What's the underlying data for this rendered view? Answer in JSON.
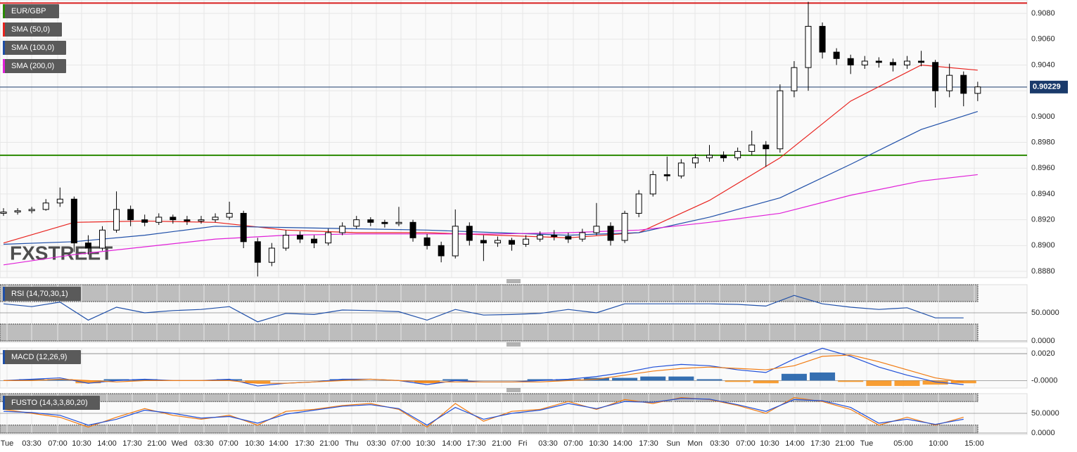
{
  "chart_data": [
    {
      "type": "candlestick",
      "name": "EUR/GBP",
      "color": "#2a8a00",
      "ylim": [
        0.88751,
        0.90904
      ],
      "yticks": [
        {
          "value": 0.888,
          "label": "0.8880"
        },
        {
          "value": 0.89,
          "label": "0.8900"
        },
        {
          "value": 0.892,
          "label": "0.8920"
        },
        {
          "value": 0.894,
          "label": "0.8940"
        },
        {
          "value": 0.896,
          "label": "0.8960"
        },
        {
          "value": 0.898,
          "label": "0.8980"
        },
        {
          "value": 0.9,
          "label": "0.9000"
        },
        {
          "value": 0.902,
          "label": "0.9020"
        },
        {
          "value": 0.904,
          "label": "0.9040"
        },
        {
          "value": 0.906,
          "label": "0.9060"
        },
        {
          "value": 0.908,
          "label": "0.9080"
        }
      ],
      "xticks": [
        "Tue",
        "03:30",
        "07:00",
        "10:30",
        "14:00",
        "17:30",
        "21:00",
        "Wed",
        "03:30",
        "07:00",
        "10:30",
        "14:00",
        "17:30",
        "21:00",
        "Thu",
        "03:30",
        "07:00",
        "10:30",
        "14:00",
        "17:30",
        "21:00",
        "Fri",
        "03:30",
        "07:00",
        "10:30",
        "14:00",
        "17:30",
        "Sun",
        "Mon",
        "03:30",
        "07:00",
        "10:30",
        "14:00",
        "17:30",
        "21:00",
        "Tue",
        "05:00",
        "10:00",
        "15:00"
      ],
      "grid": true,
      "ohlc": [
        [
          0.8925,
          0.8929,
          0.8923,
          0.8926
        ],
        [
          0.8926,
          0.8929,
          0.8924,
          0.8927
        ],
        [
          0.8927,
          0.893,
          0.8925,
          0.8928
        ],
        [
          0.8928,
          0.8936,
          0.8927,
          0.8933
        ],
        [
          0.8933,
          0.8945,
          0.893,
          0.8936
        ],
        [
          0.8936,
          0.8938,
          0.8895,
          0.8902
        ],
        [
          0.8902,
          0.8908,
          0.8893,
          0.8898
        ],
        [
          0.8898,
          0.8915,
          0.8896,
          0.8912
        ],
        [
          0.8912,
          0.8942,
          0.891,
          0.8928
        ],
        [
          0.8928,
          0.8931,
          0.8915,
          0.892
        ],
        [
          0.892,
          0.8924,
          0.8915,
          0.8918
        ],
        [
          0.8918,
          0.8925,
          0.8916,
          0.8922
        ],
        [
          0.8922,
          0.8924,
          0.8917,
          0.892
        ],
        [
          0.892,
          0.8923,
          0.8916,
          0.8919
        ],
        [
          0.8919,
          0.8923,
          0.8917,
          0.892
        ],
        [
          0.892,
          0.8925,
          0.8918,
          0.8922
        ],
        [
          0.8922,
          0.8934,
          0.892,
          0.8925
        ],
        [
          0.8925,
          0.8927,
          0.8898,
          0.8903
        ],
        [
          0.8903,
          0.8906,
          0.8876,
          0.8887
        ],
        [
          0.8887,
          0.8902,
          0.8884,
          0.8898
        ],
        [
          0.8898,
          0.8912,
          0.8896,
          0.8908
        ],
        [
          0.8908,
          0.8911,
          0.8902,
          0.8905
        ],
        [
          0.8905,
          0.8908,
          0.8898,
          0.8902
        ],
        [
          0.8902,
          0.8913,
          0.89,
          0.891
        ],
        [
          0.891,
          0.8918,
          0.8908,
          0.8915
        ],
        [
          0.8915,
          0.8923,
          0.8913,
          0.892
        ],
        [
          0.892,
          0.8922,
          0.8915,
          0.8918
        ],
        [
          0.8918,
          0.892,
          0.8914,
          0.8917
        ],
        [
          0.8917,
          0.893,
          0.8915,
          0.8918
        ],
        [
          0.8918,
          0.892,
          0.8903,
          0.8906
        ],
        [
          0.8906,
          0.8909,
          0.8897,
          0.89
        ],
        [
          0.89,
          0.8903,
          0.8887,
          0.8892
        ],
        [
          0.8892,
          0.8928,
          0.889,
          0.8915
        ],
        [
          0.8915,
          0.8918,
          0.89,
          0.8904
        ],
        [
          0.8904,
          0.8908,
          0.8888,
          0.8902
        ],
        [
          0.8902,
          0.8907,
          0.8899,
          0.8904
        ],
        [
          0.8904,
          0.8906,
          0.8896,
          0.8901
        ],
        [
          0.8901,
          0.8908,
          0.8899,
          0.8905
        ],
        [
          0.8905,
          0.8911,
          0.8903,
          0.8908
        ],
        [
          0.8908,
          0.8912,
          0.8904,
          0.8907
        ],
        [
          0.8907,
          0.891,
          0.8902,
          0.8905
        ],
        [
          0.8905,
          0.8913,
          0.8903,
          0.891
        ],
        [
          0.891,
          0.8933,
          0.8908,
          0.8915
        ],
        [
          0.8915,
          0.8918,
          0.89,
          0.8904
        ],
        [
          0.8904,
          0.8927,
          0.8902,
          0.8925
        ],
        [
          0.8925,
          0.8943,
          0.8922,
          0.894
        ],
        [
          0.894,
          0.8958,
          0.8938,
          0.8955
        ],
        [
          0.8955,
          0.8969,
          0.895,
          0.8954
        ],
        [
          0.8954,
          0.8967,
          0.8952,
          0.8964
        ],
        [
          0.8964,
          0.8971,
          0.896,
          0.8968
        ],
        [
          0.8968,
          0.8978,
          0.8965,
          0.897
        ],
        [
          0.897,
          0.8973,
          0.8965,
          0.8968
        ],
        [
          0.8968,
          0.8976,
          0.8966,
          0.8973
        ],
        [
          0.8973,
          0.8989,
          0.897,
          0.8978
        ],
        [
          0.8978,
          0.8981,
          0.8961,
          0.8975
        ],
        [
          0.8975,
          0.9025,
          0.8972,
          0.902
        ],
        [
          0.902,
          0.9043,
          0.9015,
          0.9038
        ],
        [
          0.9038,
          0.9089,
          0.902,
          0.907
        ],
        [
          0.907,
          0.9073,
          0.9045,
          0.905
        ],
        [
          0.905,
          0.9053,
          0.904,
          0.9045
        ],
        [
          0.9045,
          0.9048,
          0.9033,
          0.904
        ],
        [
          0.904,
          0.9047,
          0.9037,
          0.9043
        ],
        [
          0.9043,
          0.9046,
          0.9038,
          0.9042
        ],
        [
          0.9042,
          0.9045,
          0.9035,
          0.904
        ],
        [
          0.904,
          0.9047,
          0.9037,
          0.9043
        ],
        [
          0.9043,
          0.9051,
          0.9039,
          0.9042
        ],
        [
          0.9042,
          0.9044,
          0.9007,
          0.902
        ],
        [
          0.902,
          0.9041,
          0.9015,
          0.9032
        ],
        [
          0.9032,
          0.9035,
          0.9008,
          0.9018
        ],
        [
          0.9018,
          0.9027,
          0.9012,
          0.9023
        ]
      ],
      "series": [
        {
          "name": "SMA (50,0)",
          "color": "#e8231f",
          "x": [
            0,
            5,
            10,
            15,
            20,
            25,
            30,
            35,
            40,
            45,
            50,
            55,
            60,
            65,
            69
          ],
          "values": [
            0.8902,
            0.8918,
            0.8919,
            0.8918,
            0.8912,
            0.891,
            0.891,
            0.8908,
            0.8906,
            0.891,
            0.8935,
            0.8968,
            0.9012,
            0.904,
            0.9036
          ]
        },
        {
          "name": "SMA (100,0)",
          "color": "#1f4fa8",
          "x": [
            0,
            5,
            10,
            15,
            20,
            25,
            30,
            35,
            40,
            45,
            50,
            55,
            60,
            65,
            69
          ],
          "values": [
            0.8901,
            0.8903,
            0.8908,
            0.8915,
            0.8914,
            0.8913,
            0.8912,
            0.891,
            0.8908,
            0.891,
            0.8922,
            0.8937,
            0.8963,
            0.899,
            0.9004
          ]
        },
        {
          "name": "SMA (200,0)",
          "color": "#e020d8",
          "x": [
            0,
            5,
            10,
            15,
            20,
            25,
            30,
            35,
            40,
            45,
            50,
            55,
            60,
            65,
            69
          ],
          "values": [
            0.8885,
            0.8893,
            0.8899,
            0.8905,
            0.8908,
            0.8909,
            0.8909,
            0.8909,
            0.891,
            0.8912,
            0.8918,
            0.8925,
            0.8939,
            0.895,
            0.8955
          ]
        }
      ],
      "hlines": [
        {
          "value": 0.9088,
          "color": "#d81e1e"
        },
        {
          "value": 0.897,
          "color": "#2a8a00"
        }
      ],
      "last_price": 0.90229,
      "watermark": "FXSTREET"
    },
    {
      "type": "line",
      "name": "RSI (14,70,30,1)",
      "ylim": [
        0,
        100
      ],
      "bands": [
        70,
        30
      ],
      "yticks": [
        {
          "value": 50,
          "label": "50.0000"
        },
        {
          "value": 0,
          "label": "0.0000"
        }
      ],
      "x": [
        0,
        2,
        4,
        6,
        8,
        10,
        12,
        14,
        16,
        18,
        20,
        22,
        24,
        26,
        28,
        30,
        32,
        34,
        36,
        38,
        40,
        42,
        44,
        46,
        48,
        50,
        52,
        54,
        56,
        58,
        60,
        62,
        64,
        66,
        68
      ],
      "series": [
        {
          "color": "#1f4fa8",
          "values": [
            66,
            61,
            69,
            37,
            60,
            50,
            54,
            56,
            61,
            34,
            49,
            47,
            55,
            54,
            52,
            37,
            56,
            46,
            47,
            49,
            56,
            50,
            66,
            66,
            66,
            66,
            65,
            62,
            81,
            66,
            60,
            56,
            59,
            41,
            41
          ]
        }
      ]
    },
    {
      "type": "macd",
      "name": "MACD (12,26,9)",
      "ylim": [
        -0.00045,
        0.00242
      ],
      "yticks": [
        {
          "value": 0.002,
          "label": "0.0020"
        },
        {
          "value": 0,
          "label": "-0.0000"
        }
      ],
      "x": [
        0,
        2,
        4,
        6,
        8,
        10,
        12,
        14,
        16,
        18,
        20,
        22,
        24,
        26,
        28,
        30,
        32,
        34,
        36,
        38,
        40,
        42,
        44,
        46,
        48,
        50,
        52,
        54,
        56,
        58,
        60,
        62,
        64,
        66,
        68
      ],
      "histogram": {
        "colors": [
          "#1f5fa8",
          "#f7931e"
        ],
        "values": [
          0,
          0.0001,
          0.0001,
          -0.0002,
          0.0001,
          0.0001,
          0,
          0,
          0.0001,
          -0.0002,
          0,
          0,
          0.0001,
          0,
          0,
          -0.0002,
          0.0001,
          0,
          0,
          0.0001,
          0.0001,
          0.0002,
          0.0002,
          0.0003,
          0.0003,
          0.0001,
          -0.0001,
          -0.0002,
          0.0005,
          0.0006,
          -0.0001,
          -0.0004,
          -0.0004,
          -0.0003,
          -0.0002
        ]
      },
      "series": [
        {
          "color": "#1f4fd8",
          "values": [
            0,
            0.0001,
            0.0002,
            -0.0002,
            0,
            0.0001,
            0,
            0,
            0.0001,
            -0.0004,
            -0.0002,
            -0.0001,
            0.0001,
            0.0001,
            0,
            -0.0003,
            0,
            -0.0001,
            -0.0001,
            0,
            0.0001,
            0.0003,
            0.0006,
            0.001,
            0.0012,
            0.0011,
            0.0008,
            0.0006,
            0.0016,
            0.0024,
            0.0018,
            0.001,
            0.0004,
            -0.0001,
            -0.0003
          ]
        },
        {
          "color": "#f07a10",
          "values": [
            0,
            0,
            0.0001,
            0,
            -0.0001,
            0,
            0,
            0,
            0,
            -0.0002,
            -0.0002,
            -0.0001,
            0,
            0.0001,
            0,
            -0.0001,
            -0.0001,
            -0.0001,
            -0.0001,
            -0.0001,
            0,
            0.0001,
            0.0004,
            0.0007,
            0.0009,
            0.001,
            0.0009,
            0.0008,
            0.0011,
            0.0018,
            0.0019,
            0.0014,
            0.0008,
            0.0002,
            -0.0001
          ]
        }
      ]
    },
    {
      "type": "line",
      "name": "FUSTO (14,3,3,80,20)",
      "ylim": [
        0,
        100
      ],
      "bands": [
        80,
        20
      ],
      "yticks": [
        {
          "value": 50,
          "label": "50.0000"
        },
        {
          "value": 0,
          "label": "0.0000"
        }
      ],
      "x": [
        0,
        2,
        4,
        6,
        8,
        10,
        12,
        14,
        16,
        18,
        20,
        22,
        24,
        26,
        28,
        30,
        32,
        34,
        36,
        38,
        40,
        42,
        44,
        46,
        48,
        50,
        52,
        54,
        56,
        58,
        60,
        62,
        64,
        66,
        68
      ],
      "series": [
        {
          "color": "#f07a10",
          "values": [
            60,
            50,
            40,
            15,
            40,
            62,
            45,
            35,
            45,
            20,
            55,
            60,
            70,
            75,
            60,
            15,
            75,
            30,
            55,
            60,
            80,
            60,
            85,
            75,
            90,
            85,
            70,
            50,
            90,
            80,
            60,
            20,
            40,
            20,
            40
          ]
        },
        {
          "color": "#1f4fd8",
          "values": [
            55,
            52,
            45,
            20,
            35,
            58,
            50,
            38,
            42,
            25,
            48,
            58,
            68,
            72,
            62,
            20,
            65,
            35,
            50,
            58,
            75,
            62,
            80,
            78,
            88,
            86,
            72,
            55,
            85,
            82,
            65,
            25,
            35,
            22,
            35
          ]
        }
      ]
    }
  ]
}
